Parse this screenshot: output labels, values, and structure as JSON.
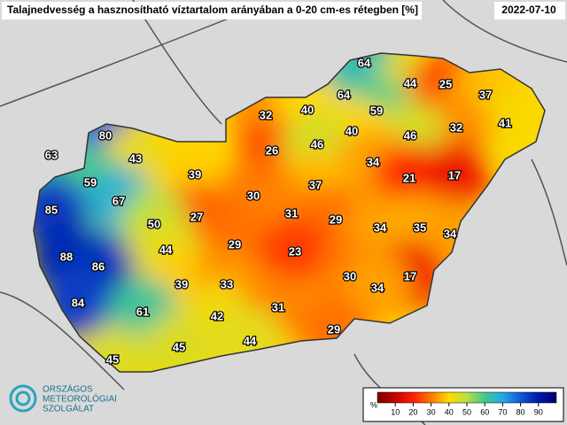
{
  "header": {
    "title": "Talajnedvesség a hasznosítható víztartalom arányában a 0-20 cm-es rétegben [%]",
    "date": "2022-07-10"
  },
  "logo": {
    "lines": [
      "ORSZÁGOS",
      "METEOROLÓGIAI",
      "SZOLGÁLAT"
    ]
  },
  "stations": {
    "values": [
      64,
      44,
      25,
      37,
      64,
      59,
      41,
      32,
      40,
      32,
      80,
      46,
      40,
      63,
      26,
      46,
      43,
      34,
      21,
      17,
      59,
      39,
      37,
      30,
      67,
      85,
      27,
      31,
      29,
      50,
      34,
      35,
      34,
      29,
      44,
      23,
      88,
      86,
      30,
      17,
      39,
      33,
      34,
      84,
      61,
      42,
      31,
      29,
      44,
      45,
      45
    ]
  },
  "colorbar": {
    "unit": "%",
    "range": [
      0,
      100
    ],
    "ticks": [
      10,
      20,
      30,
      40,
      50,
      60,
      70,
      80,
      90
    ],
    "colors": [
      "#7a0000",
      "#c80000",
      "#ff1e00",
      "#ff7a00",
      "#ffd800",
      "#b8e040",
      "#40c890",
      "#20a8e8",
      "#1058d8",
      "#0018a8",
      "#000070"
    ]
  }
}
